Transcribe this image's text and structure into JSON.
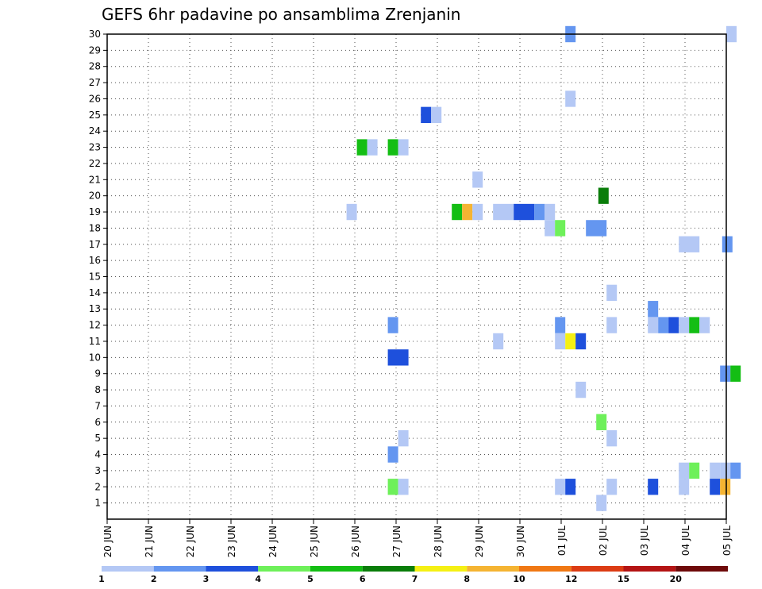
{
  "chart_data": {
    "type": "heatmap",
    "title": "GEFS 6hr padavine po ansamblima Zrenjanin",
    "xlabel": "",
    "ylabel": "",
    "x_tick_labels": [
      "20 JUN",
      "21 JUN",
      "22 JUN",
      "23 JUN",
      "24 JUN",
      "25 JUN",
      "26 JUN",
      "27 JUN",
      "28 JUN",
      "29 JUN",
      "30 JUN",
      "01 JUL",
      "02 JUL",
      "03 JUL",
      "04 JUL",
      "05 JUL"
    ],
    "x_range_days": [
      0,
      15
    ],
    "y_tick_labels": [
      1,
      2,
      3,
      4,
      5,
      6,
      7,
      8,
      9,
      10,
      11,
      12,
      13,
      14,
      15,
      16,
      17,
      18,
      19,
      20,
      21,
      22,
      23,
      24,
      25,
      26,
      27,
      28,
      29,
      30
    ],
    "y_range": [
      0,
      30
    ],
    "grid": true,
    "legend": {
      "placement": "bottom",
      "labels": [
        "1",
        "2",
        "3",
        "4",
        "5",
        "6",
        "7",
        "8",
        "10",
        "12",
        "15",
        "20"
      ],
      "colors": [
        "#b4c8f5",
        "#6496f0",
        "#1e50dc",
        "#6ef05a",
        "#14be14",
        "#0a7d0a",
        "#f5f014",
        "#f5b432",
        "#f07814",
        "#dc3c14",
        "#b41414",
        "#6e0a0a"
      ]
    },
    "color_scale": {
      "b1": "#b4c8f5",
      "b2": "#6496f0",
      "b3": "#1e50dc",
      "g1": "#6ef05a",
      "g2": "#14be14",
      "g3": "#0a7d0a",
      "y": "#f5f014",
      "o": "#f5b432"
    },
    "cells": [
      {
        "d": 11.1,
        "w": 0.25,
        "m": 30,
        "c": "b2"
      },
      {
        "d": 15.0,
        "w": 0.25,
        "m": 30,
        "c": "b1"
      },
      {
        "d": 11.1,
        "w": 0.25,
        "m": 26,
        "c": "b1"
      },
      {
        "d": 7.6,
        "w": 0.25,
        "m": 25,
        "c": "b3"
      },
      {
        "d": 7.85,
        "w": 0.25,
        "m": 25,
        "c": "b1"
      },
      {
        "d": 6.05,
        "w": 0.25,
        "m": 23,
        "c": "g2"
      },
      {
        "d": 6.3,
        "w": 0.25,
        "m": 23,
        "c": "b1"
      },
      {
        "d": 6.8,
        "w": 0.25,
        "m": 23,
        "c": "g2"
      },
      {
        "d": 7.05,
        "w": 0.25,
        "m": 23,
        "c": "b1"
      },
      {
        "d": 8.85,
        "w": 0.25,
        "m": 21,
        "c": "b1"
      },
      {
        "d": 11.9,
        "w": 0.25,
        "m": 20,
        "c": "g3"
      },
      {
        "d": 5.8,
        "w": 0.25,
        "m": 19,
        "c": "b1"
      },
      {
        "d": 8.35,
        "w": 0.25,
        "m": 19,
        "c": "g2"
      },
      {
        "d": 8.6,
        "w": 0.25,
        "m": 19,
        "c": "o"
      },
      {
        "d": 8.85,
        "w": 0.25,
        "m": 19,
        "c": "b1"
      },
      {
        "d": 9.35,
        "w": 0.5,
        "m": 19,
        "c": "b1"
      },
      {
        "d": 9.85,
        "w": 0.5,
        "m": 19,
        "c": "b3"
      },
      {
        "d": 10.35,
        "w": 0.25,
        "m": 19,
        "c": "b2"
      },
      {
        "d": 10.6,
        "w": 0.25,
        "m": 19,
        "c": "b1"
      },
      {
        "d": 10.6,
        "w": 0.25,
        "m": 18,
        "c": "b1"
      },
      {
        "d": 10.85,
        "w": 0.25,
        "m": 18,
        "c": "g1"
      },
      {
        "d": 11.6,
        "w": 0.5,
        "m": 18,
        "c": "b2"
      },
      {
        "d": 13.85,
        "w": 0.5,
        "m": 17,
        "c": "b1"
      },
      {
        "d": 14.9,
        "w": 0.25,
        "m": 17,
        "c": "b2"
      },
      {
        "d": 12.1,
        "w": 0.25,
        "m": 14,
        "c": "b1"
      },
      {
        "d": 13.1,
        "w": 0.25,
        "m": 13,
        "c": "b2"
      },
      {
        "d": 6.8,
        "w": 0.25,
        "m": 12,
        "c": "b2"
      },
      {
        "d": 12.1,
        "w": 0.25,
        "m": 12,
        "c": "b1"
      },
      {
        "d": 13.1,
        "w": 0.25,
        "m": 12,
        "c": "b1"
      },
      {
        "d": 13.35,
        "w": 0.25,
        "m": 12,
        "c": "b2"
      },
      {
        "d": 13.6,
        "w": 0.25,
        "m": 12,
        "c": "b3"
      },
      {
        "d": 13.85,
        "w": 0.25,
        "m": 12,
        "c": "b1"
      },
      {
        "d": 14.1,
        "w": 0.25,
        "m": 12,
        "c": "g2"
      },
      {
        "d": 14.35,
        "w": 0.25,
        "m": 12,
        "c": "b1"
      },
      {
        "d": 10.85,
        "w": 0.25,
        "m": 12,
        "c": "b2"
      },
      {
        "d": 9.35,
        "w": 0.25,
        "m": 11,
        "c": "b1"
      },
      {
        "d": 10.85,
        "w": 0.25,
        "m": 11,
        "c": "b1"
      },
      {
        "d": 11.1,
        "w": 0.25,
        "m": 11,
        "c": "y"
      },
      {
        "d": 11.35,
        "w": 0.25,
        "m": 11,
        "c": "b3"
      },
      {
        "d": 6.8,
        "w": 0.5,
        "m": 10,
        "c": "b3"
      },
      {
        "d": 14.85,
        "w": 0.25,
        "m": 9,
        "c": "b2"
      },
      {
        "d": 15.1,
        "w": 0.25,
        "m": 9,
        "c": "g2"
      },
      {
        "d": 11.35,
        "w": 0.25,
        "m": 8,
        "c": "b1"
      },
      {
        "d": 11.85,
        "w": 0.25,
        "m": 6,
        "c": "g1"
      },
      {
        "d": 7.05,
        "w": 0.25,
        "m": 5,
        "c": "b1"
      },
      {
        "d": 12.1,
        "w": 0.25,
        "m": 5,
        "c": "b1"
      },
      {
        "d": 6.8,
        "w": 0.25,
        "m": 4,
        "c": "b2"
      },
      {
        "d": 13.85,
        "w": 0.25,
        "m": 3,
        "c": "b1"
      },
      {
        "d": 14.1,
        "w": 0.25,
        "m": 3,
        "c": "g1"
      },
      {
        "d": 14.6,
        "w": 0.25,
        "m": 3,
        "c": "b1"
      },
      {
        "d": 14.85,
        "w": 0.25,
        "m": 3,
        "c": "b1"
      },
      {
        "d": 15.1,
        "w": 0.25,
        "m": 3,
        "c": "b2"
      },
      {
        "d": 6.8,
        "w": 0.25,
        "m": 2,
        "c": "g1"
      },
      {
        "d": 7.05,
        "w": 0.25,
        "m": 2,
        "c": "b1"
      },
      {
        "d": 10.85,
        "w": 0.25,
        "m": 2,
        "c": "b1"
      },
      {
        "d": 11.1,
        "w": 0.25,
        "m": 2,
        "c": "b3"
      },
      {
        "d": 12.1,
        "w": 0.25,
        "m": 2,
        "c": "b1"
      },
      {
        "d": 13.1,
        "w": 0.25,
        "m": 2,
        "c": "b3"
      },
      {
        "d": 13.85,
        "w": 0.25,
        "m": 2,
        "c": "b1"
      },
      {
        "d": 14.6,
        "w": 0.25,
        "m": 2,
        "c": "b3"
      },
      {
        "d": 14.85,
        "w": 0.25,
        "m": 2,
        "c": "o"
      },
      {
        "d": 11.85,
        "w": 0.25,
        "m": 1,
        "c": "b1"
      }
    ]
  }
}
